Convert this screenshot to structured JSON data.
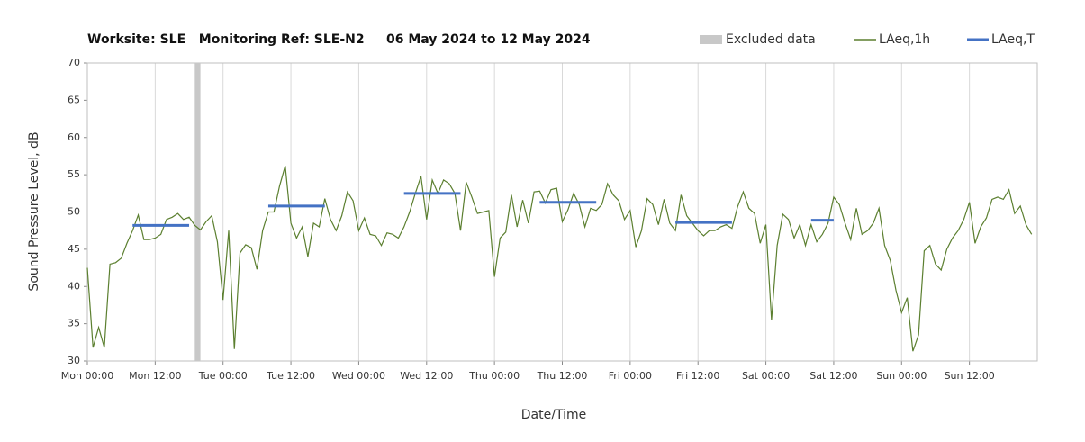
{
  "chart_data": {
    "type": "line",
    "title": "Worksite: SLE   Monitoring Ref: SLE-N2     06 May 2024 to 12 May 2024",
    "x_label": "Date/Time",
    "y_label": "Sound Pressure Level, dB",
    "xlim": [
      0,
      168
    ],
    "xticks": [
      {
        "value": 0,
        "label": "Mon 00:00"
      },
      {
        "value": 12,
        "label": "Mon 12:00"
      },
      {
        "value": 24,
        "label": "Tue 00:00"
      },
      {
        "value": 36,
        "label": "Tue 12:00"
      },
      {
        "value": 48,
        "label": "Wed 00:00"
      },
      {
        "value": 60,
        "label": "Wed 12:00"
      },
      {
        "value": 72,
        "label": "Thu 00:00"
      },
      {
        "value": 84,
        "label": "Thu 12:00"
      },
      {
        "value": 96,
        "label": "Fri 00:00"
      },
      {
        "value": 108,
        "label": "Fri 12:00"
      },
      {
        "value": 120,
        "label": "Sat 00:00"
      },
      {
        "value": 132,
        "label": "Sat 12:00"
      },
      {
        "value": 144,
        "label": "Sun 00:00"
      },
      {
        "value": 156,
        "label": "Sun 12:00"
      }
    ],
    "ylim": [
      30,
      70
    ],
    "yticks": [
      30,
      35,
      40,
      45,
      50,
      55,
      60,
      65,
      70
    ],
    "grid": "x",
    "legend": "top-right",
    "excluded": {
      "name": "Excluded data",
      "color": "#c8c8c8",
      "start": [
        19
      ],
      "end": [
        20
      ]
    },
    "series": [
      {
        "name": "LAeq,1h",
        "color": "#5b7f2f",
        "x": [
          0,
          1,
          2,
          3,
          4,
          5,
          6,
          7,
          8,
          9,
          10,
          11,
          12,
          13,
          14,
          15,
          16,
          17,
          18,
          19,
          20,
          21,
          22,
          23,
          24,
          25,
          26,
          27,
          28,
          29,
          30,
          31,
          32,
          33,
          34,
          35,
          36,
          37,
          38,
          39,
          40,
          41,
          42,
          43,
          44,
          45,
          46,
          47,
          48,
          49,
          50,
          51,
          52,
          53,
          54,
          55,
          56,
          57,
          58,
          59,
          60,
          61,
          62,
          63,
          64,
          65,
          66,
          67,
          68,
          69,
          70,
          71,
          72,
          73,
          74,
          75,
          76,
          77,
          78,
          79,
          80,
          81,
          82,
          83,
          84,
          85,
          86,
          87,
          88,
          89,
          90,
          91,
          92,
          93,
          94,
          95,
          96,
          97,
          98,
          99,
          100,
          101,
          102,
          103,
          104,
          105,
          106,
          107,
          108,
          109,
          110,
          111,
          112,
          113,
          114,
          115,
          116,
          117,
          118,
          119,
          120,
          121,
          122,
          123,
          124,
          125,
          126,
          127,
          128,
          129,
          130,
          131,
          132,
          133,
          134,
          135,
          136,
          137,
          138,
          139,
          140,
          141,
          142,
          143,
          144,
          145,
          146,
          147,
          148,
          149,
          150,
          151,
          152,
          153,
          154,
          155,
          156,
          157,
          158,
          159,
          160,
          161,
          162,
          163,
          164,
          165,
          166,
          167
        ],
        "values": [
          42.5,
          31.8,
          34.5,
          31.8,
          43,
          43.2,
          43.8,
          45.8,
          47.5,
          49.6,
          46.3,
          46.3,
          46.5,
          47,
          49,
          49.3,
          49.8,
          49,
          49.3,
          48.2,
          47.6,
          48.7,
          49.5,
          46,
          38.2,
          47.5,
          31.6,
          44.5,
          45.6,
          45.2,
          42.3,
          47.5,
          50,
          50,
          53.5,
          56.2,
          48.5,
          46.5,
          48,
          44,
          48.5,
          48,
          51.8,
          49,
          47.5,
          49.5,
          52.7,
          51.5,
          47.5,
          49.2,
          47,
          46.8,
          45.5,
          47.2,
          47,
          46.5,
          48,
          50,
          52.5,
          54.8,
          49,
          54.3,
          52.5,
          54.3,
          53.8,
          52.5,
          47.5,
          54,
          52,
          49.8,
          50,
          50.2,
          41.3,
          46.5,
          47.3,
          52.3,
          48,
          51.6,
          48.5,
          52.7,
          52.8,
          51.2,
          53,
          53.2,
          48.7,
          50.3,
          52.5,
          51,
          48,
          50.5,
          50.2,
          51,
          53.8,
          52.3,
          51.5,
          49,
          50.2,
          45.3,
          47.5,
          51.8,
          51,
          48.3,
          51.7,
          48.5,
          47.5,
          52.3,
          49.5,
          48.5,
          47.5,
          46.8,
          47.5,
          47.5,
          48,
          48.3,
          47.8,
          50.7,
          52.7,
          50.5,
          49.8,
          45.8,
          48.3,
          35.5,
          45.5,
          49.7,
          49,
          46.5,
          48.3,
          45.5,
          48.3,
          46,
          47,
          48.5,
          52,
          51,
          48.5,
          46.3,
          50.5,
          47,
          47.5,
          48.5,
          50.5,
          45.5,
          43.5,
          39.5,
          36.5,
          38.5,
          31.3,
          33.5,
          44.8,
          45.5,
          43,
          42.2,
          45,
          46.5,
          47.5,
          49,
          51.3,
          45.8,
          48,
          49.2,
          51.7,
          52,
          51.7,
          53,
          49.8,
          50.8,
          48.3,
          47
        ]
      },
      {
        "name": "LAeq,T",
        "color": "#4472c4",
        "segments": true,
        "x_start": [
          8,
          32,
          56,
          80,
          104,
          128
        ],
        "x_end": [
          18,
          42,
          66,
          90,
          114,
          132
        ],
        "values": [
          48.2,
          50.8,
          52.5,
          51.3,
          48.6,
          48.9
        ]
      }
    ]
  }
}
